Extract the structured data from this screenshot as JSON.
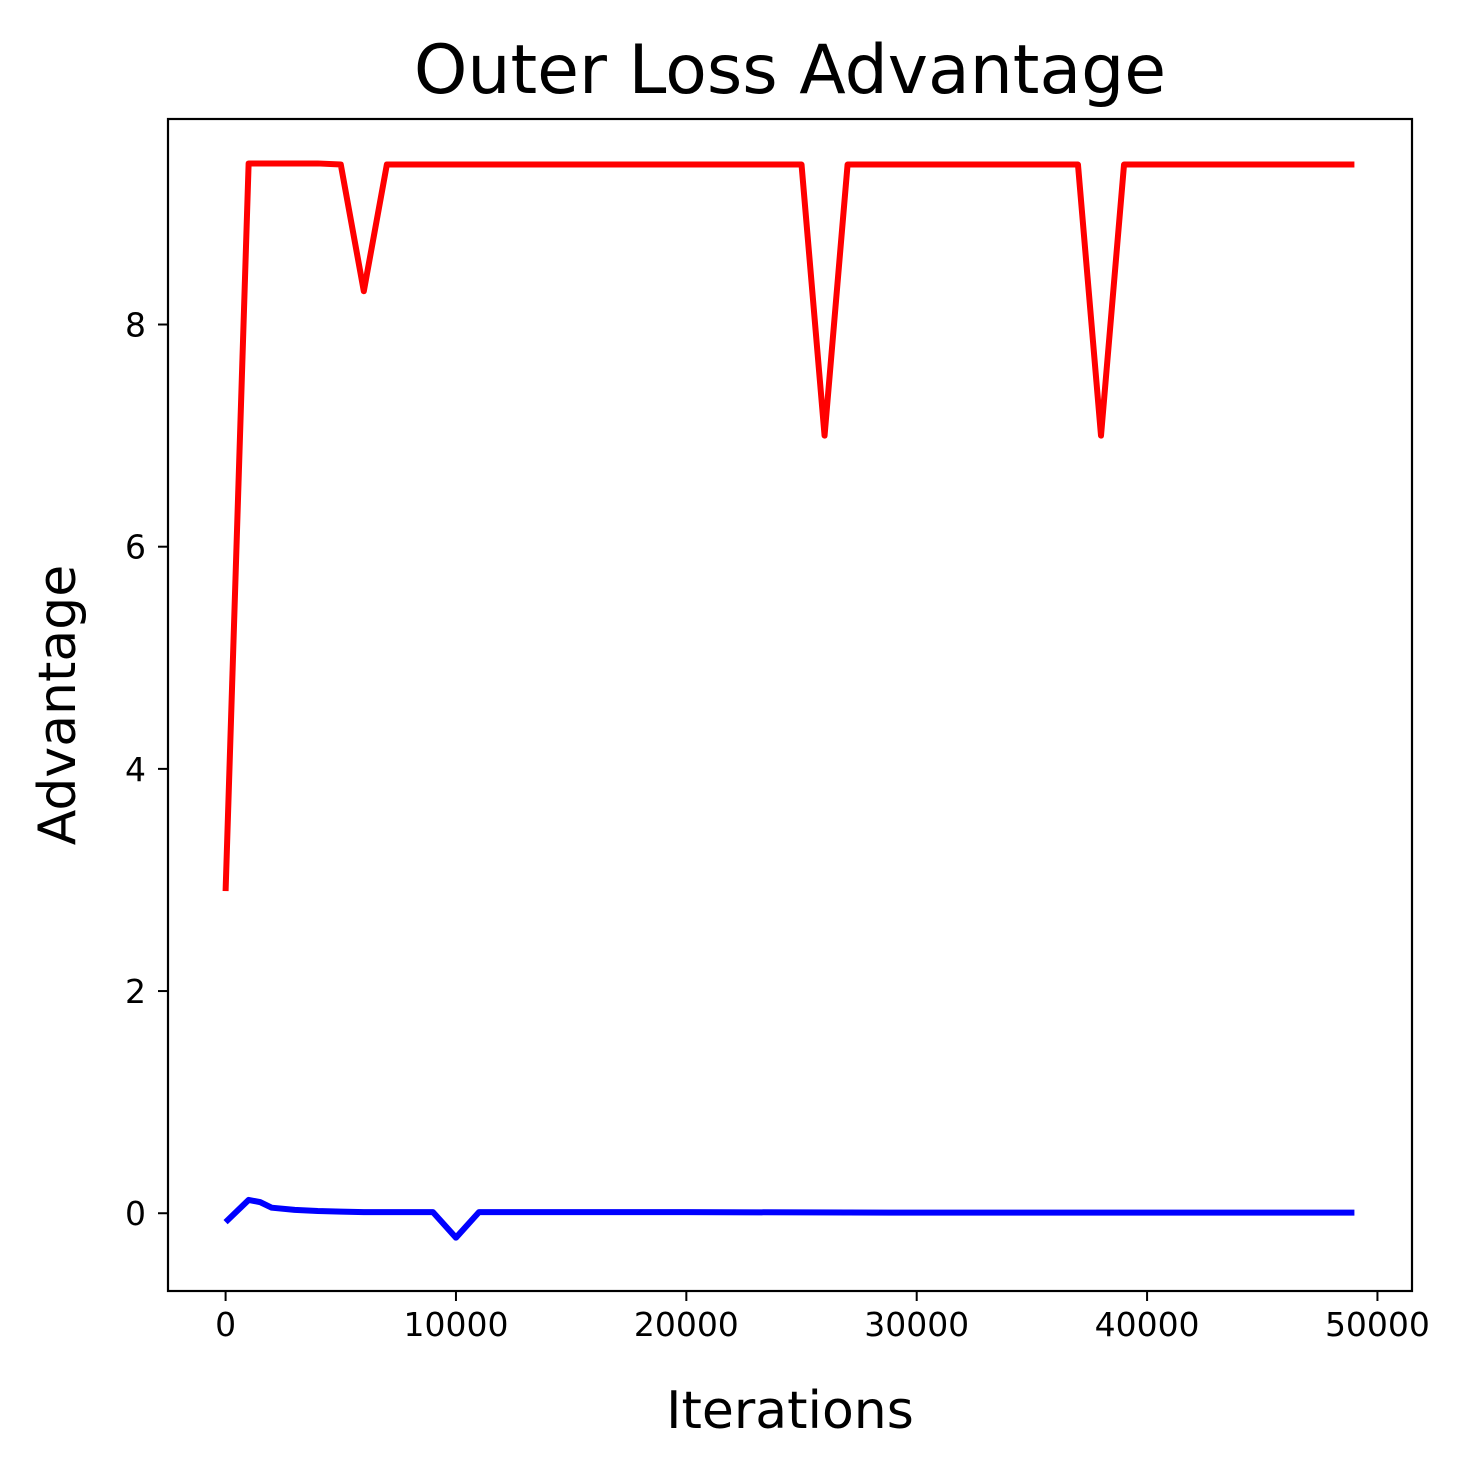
{
  "chart_data": {
    "type": "line",
    "title": "Outer Loss Advantage",
    "xlabel": "Iterations",
    "ylabel": "Advantage",
    "xlim": [
      -2500,
      51500
    ],
    "ylim": [
      -0.7,
      9.85
    ],
    "grid": false,
    "xticks": [
      0,
      10000,
      20000,
      30000,
      40000,
      50000
    ],
    "xtick_labels": [
      "0",
      "10000",
      "20000",
      "30000",
      "40000",
      "50000"
    ],
    "yticks": [
      0,
      2,
      4,
      6,
      8
    ],
    "ytick_labels": [
      "0",
      "2",
      "4",
      "6",
      "8"
    ],
    "series": [
      {
        "color": "#ff0000",
        "x": [
          0,
          1000,
          2000,
          3000,
          4000,
          5000,
          6000,
          7000,
          8000,
          9000,
          10000,
          15000,
          20000,
          24000,
          25000,
          26000,
          27000,
          28000,
          30000,
          35000,
          37000,
          38000,
          39000,
          40000,
          45000,
          49000
        ],
        "y": [
          2.9,
          9.45,
          9.45,
          9.45,
          9.45,
          9.44,
          8.3,
          9.44,
          9.44,
          9.44,
          9.44,
          9.44,
          9.44,
          9.44,
          9.44,
          7.0,
          9.44,
          9.44,
          9.44,
          9.44,
          9.44,
          7.0,
          9.44,
          9.44,
          9.44,
          9.44
        ]
      },
      {
        "color": "#0000ff",
        "x": [
          0,
          1000,
          1500,
          2000,
          3000,
          4000,
          5000,
          6000,
          7000,
          8000,
          9000,
          10000,
          11000,
          15000,
          20000,
          30000,
          40000,
          49000
        ],
        "y": [
          -0.08,
          0.12,
          0.1,
          0.05,
          0.03,
          0.02,
          0.015,
          0.01,
          0.01,
          0.01,
          0.01,
          -0.22,
          0.01,
          0.01,
          0.01,
          0.005,
          0.005,
          0.005
        ]
      }
    ]
  }
}
